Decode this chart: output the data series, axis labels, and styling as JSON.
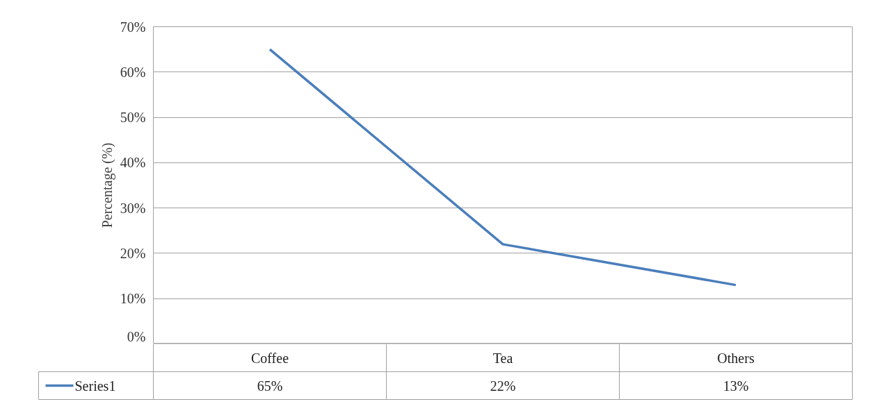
{
  "chart_data": {
    "type": "line",
    "ylabel": "Percentage (%)",
    "categories": [
      "Coffee",
      "Tea",
      "Others"
    ],
    "series": [
      {
        "name": "Series1",
        "color": "#4a7ebb",
        "values": [
          65,
          22,
          13
        ],
        "value_labels": [
          "65%",
          "22%",
          "13%"
        ]
      }
    ],
    "ylim": [
      0,
      70
    ],
    "yticks": [
      {
        "value": 0,
        "label": "0%"
      },
      {
        "value": 10,
        "label": "10%"
      },
      {
        "value": 20,
        "label": "20%"
      },
      {
        "value": 30,
        "label": "30%"
      },
      {
        "value": 40,
        "label": "40%"
      },
      {
        "value": 50,
        "label": "50%"
      },
      {
        "value": 60,
        "label": "60%"
      },
      {
        "value": 70,
        "label": "70%"
      }
    ],
    "grid": "y",
    "legend": "bottom",
    "marker": "none",
    "line_style": "solid"
  }
}
